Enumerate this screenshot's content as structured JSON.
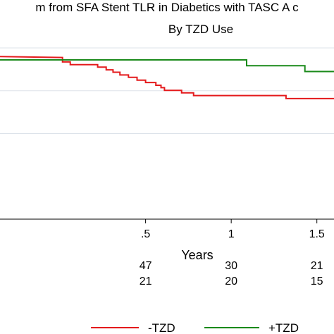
{
  "chart_data": {
    "type": "line",
    "title": "m from SFA Stent TLR in Diabetics with TASC A c",
    "subtitle": "By TZD Use",
    "xlabel": "Years",
    "ylabel": "",
    "xlim": [
      -0.35,
      1.6
    ],
    "x_ticks": [
      {
        "value": 0.5,
        "label": ".5"
      },
      {
        "value": 1,
        "label": "1"
      },
      {
        "value": 1.5,
        "label": "1.5"
      }
    ],
    "ylim": [
      0.5,
      1.0
    ],
    "y_gridlines": [
      0.75,
      0.875,
      1.0
    ],
    "grid": true,
    "series": [
      {
        "name": "-TZD",
        "color": "#e41a1c",
        "steps": [
          [
            -0.35,
            0.975
          ],
          [
            0.015,
            0.972
          ],
          [
            0.015,
            0.959
          ],
          [
            0.06,
            0.959
          ],
          [
            0.06,
            0.951
          ],
          [
            0.22,
            0.951
          ],
          [
            0.22,
            0.944
          ],
          [
            0.27,
            0.944
          ],
          [
            0.27,
            0.936
          ],
          [
            0.31,
            0.936
          ],
          [
            0.31,
            0.929
          ],
          [
            0.35,
            0.929
          ],
          [
            0.35,
            0.921
          ],
          [
            0.4,
            0.921
          ],
          [
            0.4,
            0.914
          ],
          [
            0.45,
            0.914
          ],
          [
            0.45,
            0.906
          ],
          [
            0.5,
            0.906
          ],
          [
            0.5,
            0.899
          ],
          [
            0.56,
            0.899
          ],
          [
            0.56,
            0.891
          ],
          [
            0.59,
            0.891
          ],
          [
            0.59,
            0.884
          ],
          [
            0.61,
            0.884
          ],
          [
            0.61,
            0.876
          ],
          [
            0.71,
            0.876
          ],
          [
            0.71,
            0.869
          ],
          [
            0.78,
            0.869
          ],
          [
            0.78,
            0.861
          ],
          [
            1.32,
            0.861
          ],
          [
            1.32,
            0.852
          ],
          [
            1.6,
            0.852
          ]
        ]
      },
      {
        "name": "+TZD",
        "color": "#1a8a1a",
        "steps": [
          [
            -0.35,
            0.965
          ],
          [
            1.09,
            0.965
          ],
          [
            1.09,
            0.948
          ],
          [
            1.43,
            0.948
          ],
          [
            1.43,
            0.931
          ],
          [
            1.6,
            0.931
          ]
        ]
      }
    ],
    "risk_table": {
      "at_times": [
        0.5,
        1,
        1.5
      ],
      "rows": [
        {
          "series": "-TZD",
          "values": [
            "47",
            "30",
            "21"
          ]
        },
        {
          "series": "+TZD",
          "values": [
            "21",
            "20",
            "15"
          ]
        }
      ]
    },
    "legend": {
      "placement": "bottom",
      "entries": [
        "-TZD",
        "+TZD"
      ]
    }
  }
}
